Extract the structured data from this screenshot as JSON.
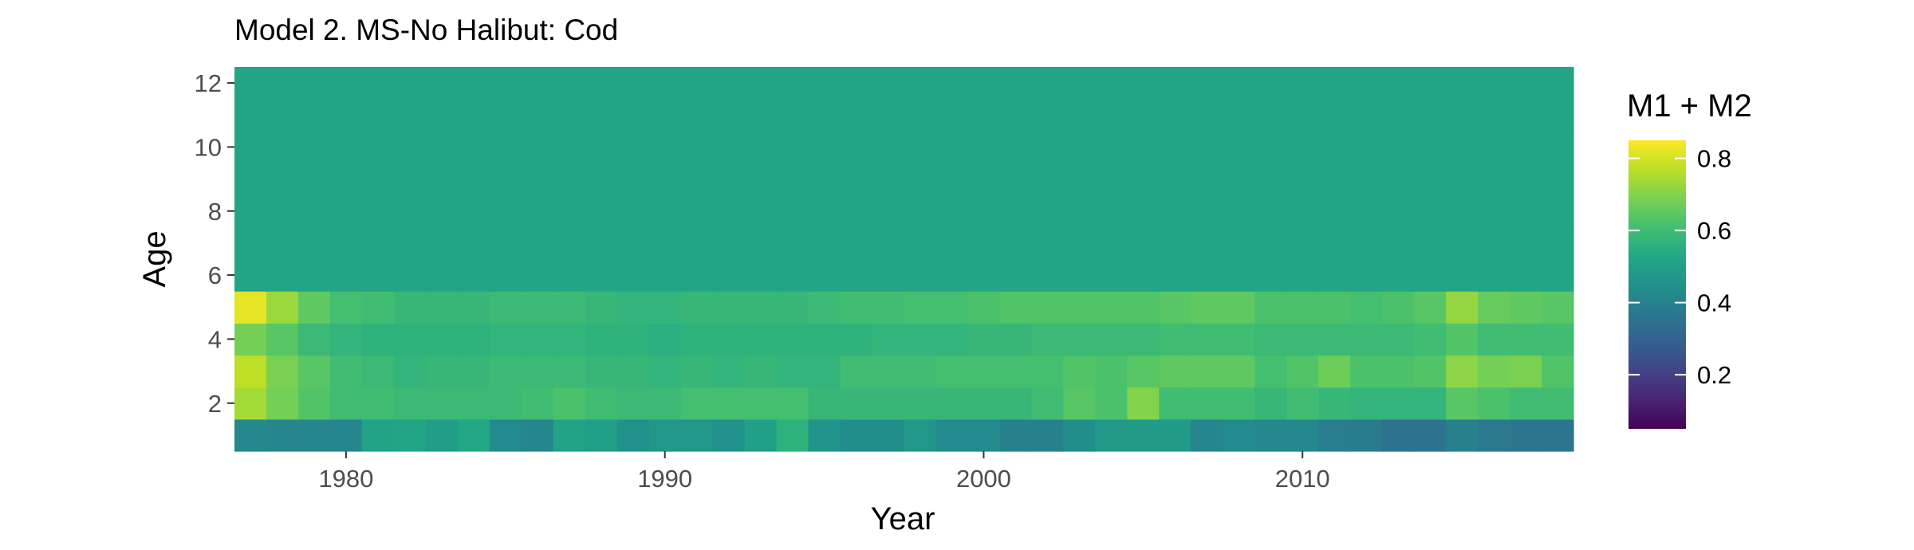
{
  "chart_data": {
    "type": "heatmap",
    "title": "Model 2. MS-No Halibut: Cod",
    "xlabel": "Year",
    "ylabel": "Age",
    "legend_title": "M1 + M2",
    "legend_placement": "right",
    "grid": false,
    "colorscale": "viridis",
    "color_range": [
      0.05,
      0.85
    ],
    "xlim": [
      1976.5,
      2018.5
    ],
    "ylim": [
      0.5,
      12.5
    ],
    "x_ticks": [
      1980,
      1990,
      2000,
      2010
    ],
    "y_ticks": [
      2,
      4,
      6,
      8,
      10,
      12
    ],
    "legend_ticks": [
      0.2,
      0.4,
      0.6,
      0.8
    ],
    "years": [
      1977,
      1978,
      1979,
      1980,
      1981,
      1982,
      1983,
      1984,
      1985,
      1986,
      1987,
      1988,
      1989,
      1990,
      1991,
      1992,
      1993,
      1994,
      1995,
      1996,
      1997,
      1998,
      1999,
      2000,
      2001,
      2002,
      2003,
      2004,
      2005,
      2006,
      2007,
      2008,
      2009,
      2010,
      2011,
      2012,
      2013,
      2014,
      2015,
      2016,
      2017,
      2018
    ],
    "ages": [
      1,
      2,
      3,
      4,
      5,
      6,
      7,
      8,
      9,
      10,
      11,
      12
    ],
    "values_by_age": {
      "1": [
        0.42,
        0.41,
        0.41,
        0.41,
        0.51,
        0.52,
        0.49,
        0.53,
        0.43,
        0.41,
        0.51,
        0.5,
        0.45,
        0.47,
        0.47,
        0.45,
        0.5,
        0.56,
        0.46,
        0.44,
        0.44,
        0.47,
        0.43,
        0.43,
        0.4,
        0.4,
        0.44,
        0.48,
        0.48,
        0.48,
        0.41,
        0.43,
        0.42,
        0.42,
        0.39,
        0.38,
        0.35,
        0.35,
        0.4,
        0.37,
        0.36,
        0.36
      ],
      "2": [
        0.74,
        0.68,
        0.63,
        0.6,
        0.6,
        0.59,
        0.59,
        0.59,
        0.59,
        0.6,
        0.62,
        0.6,
        0.59,
        0.59,
        0.61,
        0.61,
        0.61,
        0.61,
        0.58,
        0.58,
        0.58,
        0.58,
        0.58,
        0.58,
        0.58,
        0.6,
        0.64,
        0.62,
        0.7,
        0.6,
        0.6,
        0.6,
        0.58,
        0.6,
        0.58,
        0.57,
        0.57,
        0.57,
        0.64,
        0.62,
        0.6,
        0.6
      ],
      "3": [
        0.77,
        0.69,
        0.64,
        0.6,
        0.59,
        0.57,
        0.58,
        0.58,
        0.59,
        0.59,
        0.59,
        0.58,
        0.58,
        0.57,
        0.58,
        0.57,
        0.58,
        0.57,
        0.57,
        0.6,
        0.6,
        0.6,
        0.61,
        0.61,
        0.61,
        0.61,
        0.63,
        0.62,
        0.64,
        0.65,
        0.65,
        0.65,
        0.61,
        0.63,
        0.67,
        0.62,
        0.62,
        0.63,
        0.71,
        0.68,
        0.69,
        0.63
      ],
      "4": [
        0.68,
        0.64,
        0.59,
        0.57,
        0.56,
        0.56,
        0.56,
        0.56,
        0.57,
        0.57,
        0.57,
        0.56,
        0.56,
        0.55,
        0.56,
        0.56,
        0.56,
        0.56,
        0.56,
        0.56,
        0.57,
        0.57,
        0.57,
        0.58,
        0.58,
        0.59,
        0.59,
        0.59,
        0.59,
        0.6,
        0.6,
        0.6,
        0.59,
        0.59,
        0.59,
        0.59,
        0.59,
        0.6,
        0.63,
        0.6,
        0.6,
        0.6
      ],
      "5": [
        0.82,
        0.73,
        0.65,
        0.61,
        0.6,
        0.58,
        0.58,
        0.58,
        0.59,
        0.59,
        0.59,
        0.58,
        0.57,
        0.57,
        0.58,
        0.58,
        0.58,
        0.58,
        0.59,
        0.6,
        0.6,
        0.61,
        0.61,
        0.62,
        0.63,
        0.63,
        0.63,
        0.63,
        0.63,
        0.64,
        0.65,
        0.65,
        0.62,
        0.62,
        0.62,
        0.61,
        0.62,
        0.64,
        0.72,
        0.66,
        0.65,
        0.64
      ],
      "6": [
        0.52,
        0.52,
        0.52,
        0.52,
        0.52,
        0.52,
        0.52,
        0.52,
        0.52,
        0.52,
        0.52,
        0.52,
        0.52,
        0.52,
        0.52,
        0.52,
        0.52,
        0.52,
        0.52,
        0.52,
        0.52,
        0.52,
        0.52,
        0.52,
        0.52,
        0.52,
        0.52,
        0.52,
        0.52,
        0.52,
        0.52,
        0.52,
        0.52,
        0.52,
        0.52,
        0.52,
        0.52,
        0.52,
        0.52,
        0.52,
        0.52,
        0.52
      ],
      "7": [
        0.52,
        0.52,
        0.52,
        0.52,
        0.52,
        0.52,
        0.52,
        0.52,
        0.52,
        0.52,
        0.52,
        0.52,
        0.52,
        0.52,
        0.52,
        0.52,
        0.52,
        0.52,
        0.52,
        0.52,
        0.52,
        0.52,
        0.52,
        0.52,
        0.52,
        0.52,
        0.52,
        0.52,
        0.52,
        0.52,
        0.52,
        0.52,
        0.52,
        0.52,
        0.52,
        0.52,
        0.52,
        0.52,
        0.52,
        0.52,
        0.52,
        0.52
      ],
      "8": [
        0.52,
        0.52,
        0.52,
        0.52,
        0.52,
        0.52,
        0.52,
        0.52,
        0.52,
        0.52,
        0.52,
        0.52,
        0.52,
        0.52,
        0.52,
        0.52,
        0.52,
        0.52,
        0.52,
        0.52,
        0.52,
        0.52,
        0.52,
        0.52,
        0.52,
        0.52,
        0.52,
        0.52,
        0.52,
        0.52,
        0.52,
        0.52,
        0.52,
        0.52,
        0.52,
        0.52,
        0.52,
        0.52,
        0.52,
        0.52,
        0.52,
        0.52
      ],
      "9": [
        0.52,
        0.52,
        0.52,
        0.52,
        0.52,
        0.52,
        0.52,
        0.52,
        0.52,
        0.52,
        0.52,
        0.52,
        0.52,
        0.52,
        0.52,
        0.52,
        0.52,
        0.52,
        0.52,
        0.52,
        0.52,
        0.52,
        0.52,
        0.52,
        0.52,
        0.52,
        0.52,
        0.52,
        0.52,
        0.52,
        0.52,
        0.52,
        0.52,
        0.52,
        0.52,
        0.52,
        0.52,
        0.52,
        0.52,
        0.52,
        0.52,
        0.52
      ],
      "10": [
        0.52,
        0.52,
        0.52,
        0.52,
        0.52,
        0.52,
        0.52,
        0.52,
        0.52,
        0.52,
        0.52,
        0.52,
        0.52,
        0.52,
        0.52,
        0.52,
        0.52,
        0.52,
        0.52,
        0.52,
        0.52,
        0.52,
        0.52,
        0.52,
        0.52,
        0.52,
        0.52,
        0.52,
        0.52,
        0.52,
        0.52,
        0.52,
        0.52,
        0.52,
        0.52,
        0.52,
        0.52,
        0.52,
        0.52,
        0.52,
        0.52,
        0.52
      ],
      "11": [
        0.52,
        0.52,
        0.52,
        0.52,
        0.52,
        0.52,
        0.52,
        0.52,
        0.52,
        0.52,
        0.52,
        0.52,
        0.52,
        0.52,
        0.52,
        0.52,
        0.52,
        0.52,
        0.52,
        0.52,
        0.52,
        0.52,
        0.52,
        0.52,
        0.52,
        0.52,
        0.52,
        0.52,
        0.52,
        0.52,
        0.52,
        0.52,
        0.52,
        0.52,
        0.52,
        0.52,
        0.52,
        0.52,
        0.52,
        0.52,
        0.52,
        0.52
      ],
      "12": [
        0.52,
        0.52,
        0.52,
        0.52,
        0.52,
        0.52,
        0.52,
        0.52,
        0.52,
        0.52,
        0.52,
        0.52,
        0.52,
        0.52,
        0.52,
        0.52,
        0.52,
        0.52,
        0.52,
        0.52,
        0.52,
        0.52,
        0.52,
        0.52,
        0.52,
        0.52,
        0.52,
        0.52,
        0.52,
        0.52,
        0.52,
        0.52,
        0.52,
        0.52,
        0.52,
        0.52,
        0.52,
        0.52,
        0.52,
        0.52,
        0.52,
        0.52
      ]
    }
  }
}
